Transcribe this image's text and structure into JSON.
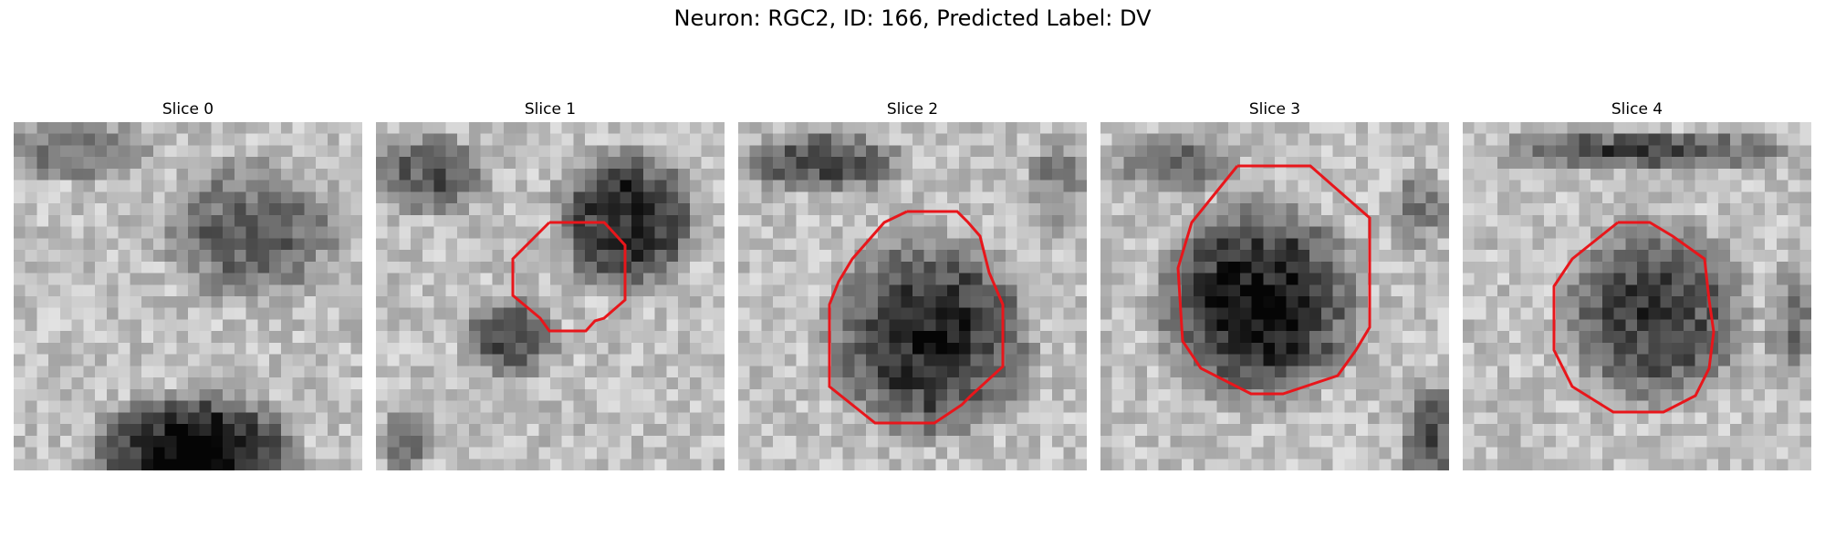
{
  "figure": {
    "title": "Neuron: RGC2, ID: 166, Predicted Label: DV"
  },
  "panels": [
    {
      "title": "Slice 0",
      "has_contour": false
    },
    {
      "title": "Slice 1",
      "has_contour": true
    },
    {
      "title": "Slice 2",
      "has_contour": true
    },
    {
      "title": "Slice 3",
      "has_contour": true
    },
    {
      "title": "Slice 4",
      "has_contour": true
    }
  ],
  "colors": {
    "contour": "#e8161b",
    "background": "#ffffff"
  }
}
